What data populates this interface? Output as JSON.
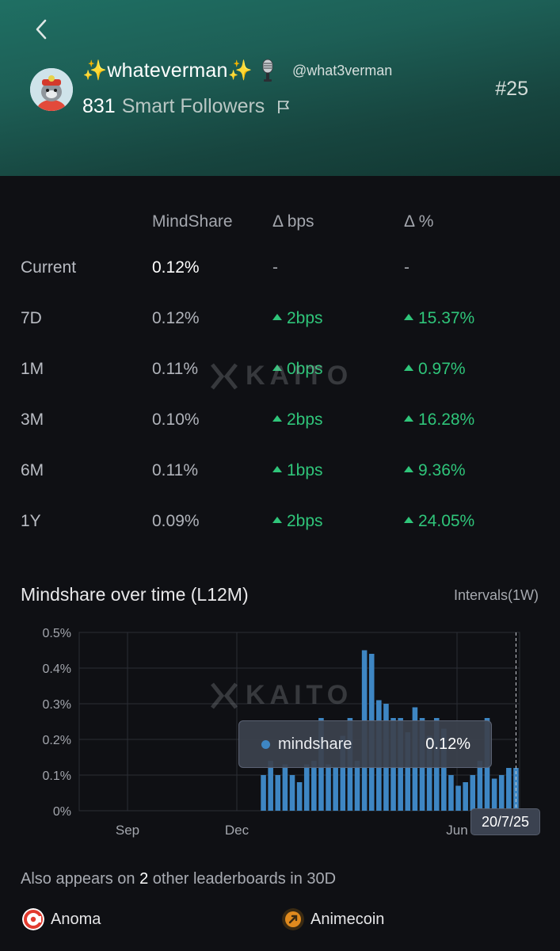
{
  "header": {
    "name": "✨whateverman✨",
    "handle": "@what3verman",
    "followers_count": "831",
    "followers_label": "Smart Followers",
    "rank": "#25"
  },
  "table": {
    "columns": [
      "MindShare",
      "Δ bps",
      "Δ %"
    ],
    "rows": [
      {
        "period": "Current",
        "mindshare": "0.12%",
        "bps": "-",
        "pct": "-"
      },
      {
        "period": "7D",
        "mindshare": "0.12%",
        "bps": "2bps",
        "pct": "15.37%"
      },
      {
        "period": "1M",
        "mindshare": "0.11%",
        "bps": "0bps",
        "pct": "0.97%"
      },
      {
        "period": "3M",
        "mindshare": "0.10%",
        "bps": "2bps",
        "pct": "16.28%"
      },
      {
        "period": "6M",
        "mindshare": "0.11%",
        "bps": "1bps",
        "pct": "9.36%"
      },
      {
        "period": "1Y",
        "mindshare": "0.09%",
        "bps": "2bps",
        "pct": "24.05%"
      }
    ]
  },
  "watermark": "KAITO",
  "chart_section": {
    "title": "Mindshare over time (L12M)",
    "interval": "Intervals(1W)"
  },
  "chart_data": {
    "type": "bar",
    "series": [
      {
        "name": "mindshare",
        "values": [
          0.1,
          0.14,
          0.1,
          0.13,
          0.1,
          0.08,
          0.13,
          0.14,
          0.26,
          0.13,
          0.12,
          0.21,
          0.26,
          0.14,
          0.45,
          0.44,
          0.31,
          0.3,
          0.26,
          0.26,
          0.22,
          0.29,
          0.26,
          0.21,
          0.26,
          0.23,
          0.1,
          0.07,
          0.08,
          0.1,
          0.14,
          0.26,
          0.09,
          0.1,
          0.12,
          0.12
        ]
      }
    ],
    "x_tick_labels": [
      "Sep",
      "Dec",
      "Jun"
    ],
    "y_tick_labels": [
      "0.5%",
      "0.4%",
      "0.3%",
      "0.2%",
      "0.1%",
      "0%"
    ],
    "ylim": [
      0,
      0.5
    ],
    "grid": true,
    "color": "#3e86c3",
    "highlight_date": "20/7/25"
  },
  "tooltip": {
    "label": "mindshare",
    "value": "0.12%"
  },
  "also": {
    "prefix": "Also appears on",
    "count": "2",
    "suffix": "other leaderboards in 30D"
  },
  "boards": [
    {
      "name": "Anoma",
      "color": "#e23b2f"
    },
    {
      "name": "Animecoin",
      "color": "#e08a1e"
    }
  ],
  "colors": {
    "positive": "#2fc57a",
    "header_teal": "#1d5f56",
    "background": "#0f1014"
  }
}
